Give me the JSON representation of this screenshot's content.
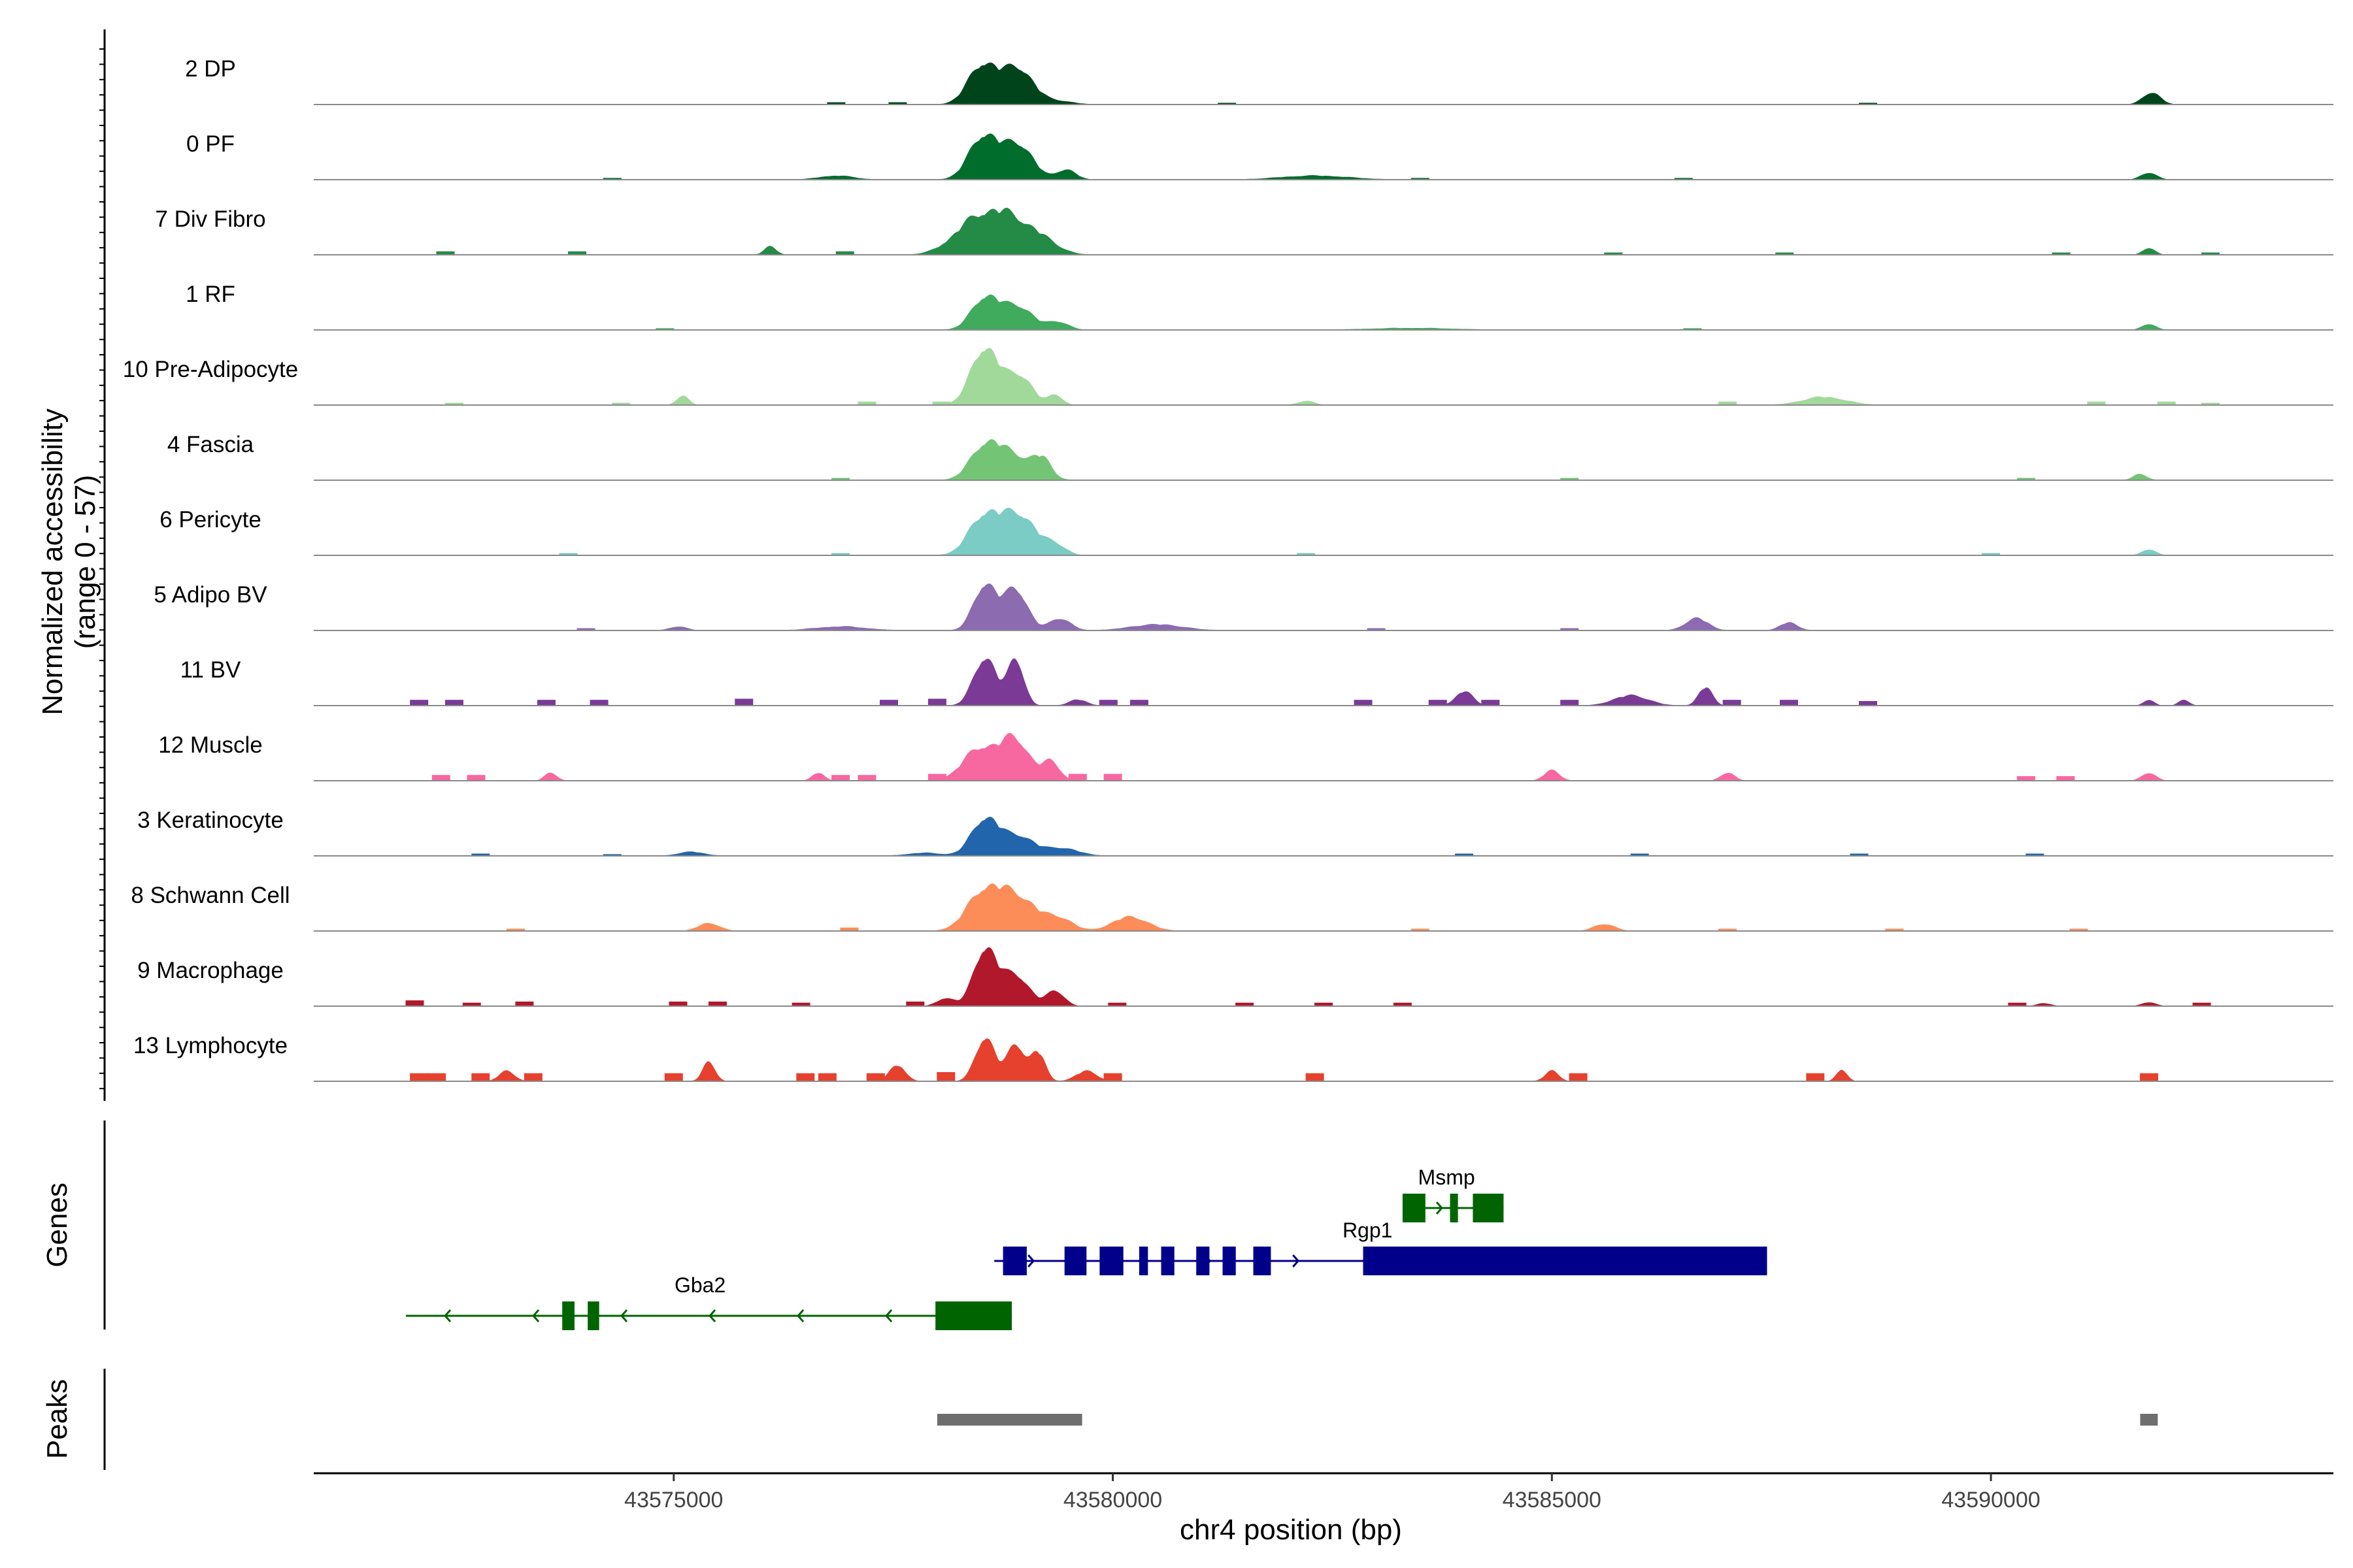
{
  "chart_data": {
    "type": "area",
    "title": "",
    "ylabel": "Normalized accessibility\n(range 0 - 57)",
    "y_range": [
      0,
      57
    ],
    "xlabel": "chr4 position (bp)",
    "x_range": [
      43570900,
      43593900
    ],
    "x_ticks": [
      43575000,
      43580000,
      43585000,
      43590000
    ],
    "x_tick_labels": [
      "43575000",
      "43580000",
      "43585000",
      "43590000"
    ],
    "tracks": [
      {
        "name": "2 DP",
        "color": "#00441b",
        "peaks": [
          [
            43578530,
            40,
            170
          ],
          [
            43578930,
            34,
            160
          ],
          [
            43579330,
            4,
            200
          ],
          [
            43591830,
            12,
            100
          ]
        ],
        "islands": [
          [
            43576850,
            2
          ],
          [
            43577550,
            2
          ],
          [
            43581300,
            1.5
          ],
          [
            43588600,
            1.5
          ]
        ]
      },
      {
        "name": "0 PF",
        "color": "#006d2c",
        "peaks": [
          [
            43578540,
            44,
            170
          ],
          [
            43578940,
            33,
            160
          ],
          [
            43579470,
            10,
            110
          ],
          [
            43582300,
            4,
            400
          ],
          [
            43591800,
            7,
            90
          ],
          [
            43576850,
            4,
            200
          ]
        ],
        "islands": [
          [
            43574300,
            1.5
          ],
          [
            43583500,
            1.5
          ],
          [
            43586500,
            1.5
          ]
        ]
      },
      {
        "name": "7 Div Fibro",
        "color": "#238b45",
        "peaks": [
          [
            43578400,
            26,
            250
          ],
          [
            43578800,
            33,
            260
          ],
          [
            43579200,
            10,
            200
          ],
          [
            43576100,
            8,
            70
          ],
          [
            43591800,
            7,
            70
          ]
        ],
        "islands": [
          [
            43572400,
            3
          ],
          [
            43573900,
            3
          ],
          [
            43576950,
            3
          ],
          [
            43578000,
            3
          ],
          [
            43585700,
            2
          ],
          [
            43587650,
            2
          ],
          [
            43590800,
            2
          ],
          [
            43592500,
            2
          ]
        ]
      },
      {
        "name": "1 RF",
        "color": "#41ab5d",
        "peaks": [
          [
            43578560,
            33,
            160
          ],
          [
            43578940,
            22,
            160
          ],
          [
            43579380,
            8,
            120
          ],
          [
            43591800,
            6,
            80
          ],
          [
            43583400,
            2,
            500
          ]
        ],
        "islands": [
          [
            43574900,
            1.5
          ],
          [
            43586600,
            1.5
          ]
        ]
      },
      {
        "name": "10 Pre-Adipocyte",
        "color": "#a1d99b",
        "peaks": [
          [
            43578550,
            57,
            160
          ],
          [
            43578950,
            28,
            140
          ],
          [
            43579350,
            10,
            80
          ],
          [
            43575100,
            9,
            70
          ],
          [
            43588100,
            8,
            250
          ],
          [
            43582200,
            4,
            100
          ]
        ],
        "islands": [
          [
            43572500,
            2
          ],
          [
            43574400,
            2
          ],
          [
            43577200,
            3
          ],
          [
            43578050,
            3
          ],
          [
            43587000,
            3
          ],
          [
            43591200,
            3
          ],
          [
            43592000,
            3
          ],
          [
            43592500,
            2
          ]
        ]
      },
      {
        "name": "4 Fascia",
        "color": "#74c476",
        "peaks": [
          [
            43578550,
            32,
            170
          ],
          [
            43578900,
            22,
            220
          ],
          [
            43579200,
            15,
            100
          ],
          [
            43591700,
            6,
            80
          ]
        ],
        "islands": [
          [
            43576900,
            2
          ],
          [
            43585200,
            2
          ],
          [
            43590400,
            2
          ]
        ]
      },
      {
        "name": "6 Pericyte",
        "color": "#7bccc4",
        "peaks": [
          [
            43578550,
            40,
            180
          ],
          [
            43578950,
            38,
            180
          ],
          [
            43579350,
            10,
            120
          ],
          [
            43591800,
            6,
            80
          ]
        ],
        "islands": [
          [
            43573800,
            2
          ],
          [
            43576900,
            2
          ],
          [
            43582200,
            2
          ],
          [
            43590000,
            2
          ]
        ]
      },
      {
        "name": "5 Adipo BV",
        "color": "#8c6bb1",
        "peaks": [
          [
            43578550,
            46,
            130
          ],
          [
            43578900,
            40,
            130
          ],
          [
            43579400,
            12,
            120
          ],
          [
            43586650,
            12,
            130
          ],
          [
            43587700,
            8,
            100
          ],
          [
            43575050,
            4,
            100
          ],
          [
            43580500,
            6,
            300
          ],
          [
            43576900,
            4,
            300
          ]
        ],
        "islands": [
          [
            43574000,
            2
          ],
          [
            43583000,
            2
          ],
          [
            43585200,
            2
          ]
        ]
      },
      {
        "name": "11 BV",
        "color": "#7a3a96",
        "peaks": [
          [
            43578550,
            48,
            130
          ],
          [
            43578900,
            45,
            90
          ],
          [
            43584000,
            14,
            100
          ],
          [
            43586750,
            18,
            80
          ],
          [
            43585900,
            10,
            200
          ],
          [
            43579600,
            6,
            100
          ],
          [
            43591800,
            6,
            60
          ],
          [
            43592200,
            6,
            60
          ]
        ],
        "islands": [
          [
            43572100,
            5
          ],
          [
            43572500,
            5
          ],
          [
            43573550,
            5
          ],
          [
            43574150,
            5
          ],
          [
            43575800,
            6
          ],
          [
            43577450,
            5
          ],
          [
            43578000,
            6
          ],
          [
            43579950,
            5
          ],
          [
            43580300,
            5
          ],
          [
            43582850,
            5
          ],
          [
            43583700,
            5
          ],
          [
            43584300,
            5
          ],
          [
            43585200,
            5
          ],
          [
            43587050,
            5
          ],
          [
            43587700,
            5
          ],
          [
            43588600,
            4
          ]
        ]
      },
      {
        "name": "12 Muscle",
        "color": "#f768a1",
        "peaks": [
          [
            43578500,
            32,
            200
          ],
          [
            43578900,
            38,
            160
          ],
          [
            43579300,
            18,
            100
          ],
          [
            43585000,
            10,
            90
          ],
          [
            43587000,
            8,
            80
          ],
          [
            43591800,
            8,
            80
          ],
          [
            43573600,
            8,
            70
          ],
          [
            43576650,
            8,
            70
          ]
        ],
        "islands": [
          [
            43572350,
            5
          ],
          [
            43572750,
            5
          ],
          [
            43578000,
            6
          ],
          [
            43579600,
            6
          ],
          [
            43580000,
            6
          ],
          [
            43576900,
            5
          ],
          [
            43577200,
            5
          ],
          [
            43590400,
            4
          ],
          [
            43590850,
            4
          ]
        ]
      },
      {
        "name": "3 Keratinocyte",
        "color": "#2166ac",
        "peaks": [
          [
            43578560,
            38,
            160
          ],
          [
            43578950,
            18,
            150
          ],
          [
            43579400,
            8,
            200
          ],
          [
            43575200,
            4,
            150
          ],
          [
            43577850,
            3,
            200
          ]
        ],
        "islands": [
          [
            43572800,
            2
          ],
          [
            43574300,
            1.5
          ],
          [
            43584000,
            2
          ],
          [
            43586000,
            2
          ],
          [
            43588500,
            2
          ],
          [
            43590500,
            2
          ]
        ]
      },
      {
        "name": "8 Schwann Cell",
        "color": "#fc8d59",
        "peaks": [
          [
            43578550,
            40,
            200
          ],
          [
            43578950,
            30,
            200
          ],
          [
            43579400,
            12,
            150
          ],
          [
            43580200,
            14,
            200
          ],
          [
            43575400,
            8,
            120
          ],
          [
            43585600,
            7,
            120
          ]
        ],
        "islands": [
          [
            43573200,
            2
          ],
          [
            43577000,
            3
          ],
          [
            43583500,
            2
          ],
          [
            43587000,
            2
          ],
          [
            43588900,
            2
          ],
          [
            43591000,
            2
          ]
        ]
      },
      {
        "name": "9 Macrophage",
        "color": "#b2182b",
        "peaks": [
          [
            43578550,
            57,
            130
          ],
          [
            43578900,
            30,
            150
          ],
          [
            43579350,
            15,
            100
          ],
          [
            43578100,
            8,
            100
          ],
          [
            43591800,
            4,
            80
          ],
          [
            43590600,
            3,
            80
          ]
        ],
        "islands": [
          [
            43572050,
            5
          ],
          [
            43572700,
            3
          ],
          [
            43573300,
            4
          ],
          [
            43575050,
            4
          ],
          [
            43575500,
            4
          ],
          [
            43576450,
            3
          ],
          [
            43577750,
            4
          ],
          [
            43580050,
            3
          ],
          [
            43581500,
            3
          ],
          [
            43582400,
            3
          ],
          [
            43583300,
            3
          ],
          [
            43590300,
            3
          ],
          [
            43592400,
            3
          ]
        ]
      },
      {
        "name": "13 Lymphocyte",
        "color": "#e6412e",
        "peaks": [
          [
            43578550,
            44,
            110
          ],
          [
            43578900,
            36,
            100
          ],
          [
            43579150,
            28,
            80
          ],
          [
            43575400,
            20,
            70
          ],
          [
            43577550,
            16,
            90
          ],
          [
            43588300,
            12,
            60
          ],
          [
            43579700,
            10,
            120
          ],
          [
            43573100,
            10,
            90
          ],
          [
            43585000,
            10,
            80
          ]
        ],
        "islands": [
          [
            43572100,
            7
          ],
          [
            43572300,
            7
          ],
          [
            43572800,
            7
          ],
          [
            43573400,
            7
          ],
          [
            43575000,
            7
          ],
          [
            43576500,
            7
          ],
          [
            43576750,
            7
          ],
          [
            43577300,
            7
          ],
          [
            43578100,
            8
          ],
          [
            43580000,
            7
          ],
          [
            43582300,
            7
          ],
          [
            43585300,
            7
          ],
          [
            43588000,
            7
          ],
          [
            43591800,
            7
          ]
        ]
      }
    ],
    "genes_label": "Genes",
    "genes": [
      {
        "name": "Msmp",
        "color": "#006400",
        "strand": "+",
        "row": 0,
        "start": 43583300,
        "end": 43584450,
        "label_x": 43583800,
        "exons": [
          [
            43583300,
            43583560
          ],
          [
            43583840,
            43583930
          ],
          [
            43584100,
            43584450
          ]
        ]
      },
      {
        "name": "Rgp1",
        "color": "#00008b",
        "strand": "+",
        "row": 1,
        "start": 43578650,
        "end": 43587450,
        "label_x": 43582900,
        "exons": [
          [
            43578750,
            43579020
          ],
          [
            43579450,
            43579700
          ],
          [
            43579850,
            43580120
          ],
          [
            43580300,
            43580400
          ],
          [
            43580550,
            43580700
          ],
          [
            43580950,
            43581100
          ],
          [
            43581250,
            43581400
          ],
          [
            43581600,
            43581800
          ],
          [
            43582850,
            43587450
          ]
        ]
      },
      {
        "name": "Gba2",
        "color": "#006400",
        "strand": "-",
        "row": 2,
        "start": 43571950,
        "end": 43578850,
        "label_x": 43575300,
        "exons": [
          [
            43573730,
            43573870
          ],
          [
            43574020,
            43574150
          ],
          [
            43577980,
            43578850
          ]
        ]
      }
    ],
    "peaks_label": "Peaks",
    "peak_regions": [
      [
        43578000,
        43579650
      ],
      [
        43591700,
        43591900
      ]
    ]
  }
}
